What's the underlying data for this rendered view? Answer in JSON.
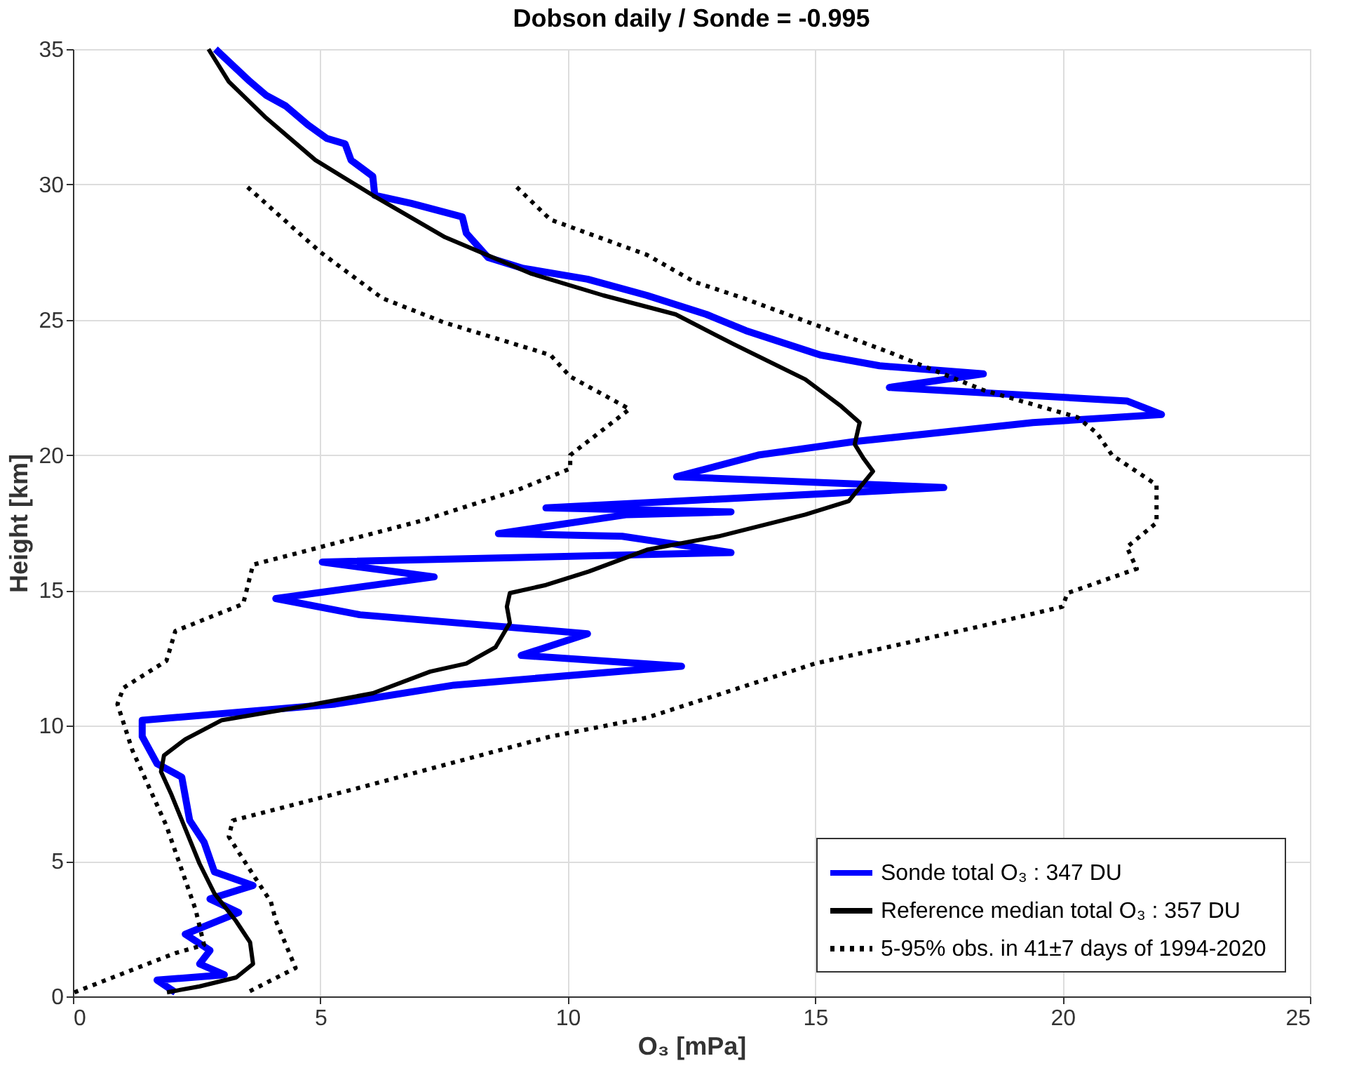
{
  "chart_data": {
    "type": "line",
    "title": "Dobson daily / Sonde = -0.995",
    "xlabel": "O₃ [mPa]",
    "ylabel": "Height [km]",
    "xlim": [
      0,
      25
    ],
    "xticks": [
      0,
      5,
      10,
      15,
      20,
      25
    ],
    "ylim": [
      0,
      35
    ],
    "yticks": [
      0,
      5,
      10,
      15,
      20,
      25,
      30,
      35
    ],
    "grid": true,
    "legend": "bottom right",
    "series": [
      {
        "name": "Sonde total O₃ : 347 DU",
        "color": "#0000ff",
        "line_style": "solid",
        "x": [
          2.88,
          3.58,
          3.9,
          4.3,
          4.75,
          5.13,
          5.5,
          5.62,
          6.06,
          6.1,
          6.84,
          7.87,
          7.95,
          8.39,
          9.1,
          10.4,
          11.6,
          12.8,
          13.6,
          15.1,
          16.3,
          18.4,
          16.5,
          21.3,
          22.0,
          19.4,
          15.8,
          13.85,
          12.2,
          17.6,
          9.56,
          13.3,
          11.2,
          8.6,
          11.1,
          13.3,
          5.04,
          7.3,
          4.1,
          5.8,
          10.4,
          9.06,
          12.3,
          7.7,
          5.3,
          1.4,
          1.4,
          1.7,
          2.2,
          2.36,
          2.65,
          2.86,
          3.64,
          2.77,
          3.35,
          2.27,
          2.77,
          2.56,
          3.06,
          1.7,
          2.07
        ],
        "values": [
          35,
          33.8,
          33.3,
          32.9,
          32.2,
          31.7,
          31.5,
          30.9,
          30.3,
          29.6,
          29.3,
          28.8,
          28.2,
          27.3,
          26.9,
          26.5,
          25.9,
          25.2,
          24.6,
          23.7,
          23.3,
          23.0,
          22.5,
          22.0,
          21.5,
          21.2,
          20.5,
          20.0,
          19.2,
          18.8,
          18.05,
          17.9,
          17.8,
          17.1,
          17.0,
          16.4,
          16.05,
          15.5,
          14.7,
          14.1,
          13.4,
          12.6,
          12.2,
          11.5,
          10.8,
          10.2,
          9.6,
          8.6,
          8.1,
          6.5,
          5.7,
          4.6,
          4.1,
          3.6,
          3.1,
          2.3,
          1.7,
          1.2,
          0.8,
          0.6,
          0.15
        ]
      },
      {
        "name": "Reference median total O₃ : 357 DU",
        "color": "#000000",
        "line_style": "solid",
        "x": [
          2.74,
          3.15,
          3.88,
          4.9,
          6.06,
          7.52,
          9.27,
          10.72,
          12.18,
          13.35,
          14.8,
          15.53,
          15.9,
          15.8,
          15.97,
          16.17,
          15.68,
          14.8,
          13.05,
          11.6,
          10.43,
          9.56,
          8.83,
          8.77,
          8.83,
          8.54,
          7.95,
          7.22,
          6.06,
          4.6,
          3.0,
          2.27,
          1.84,
          1.78,
          1.98,
          2.27,
          2.56,
          2.86,
          3.29,
          3.58,
          3.64,
          3.3,
          2.56,
          1.9
        ],
        "values": [
          35,
          33.8,
          32.5,
          30.9,
          29.6,
          28.05,
          26.7,
          25.9,
          25.2,
          24.1,
          22.8,
          21.8,
          21.2,
          20.4,
          19.9,
          19.4,
          18.3,
          17.8,
          17.0,
          16.5,
          15.7,
          15.2,
          14.9,
          14.4,
          13.8,
          12.9,
          12.3,
          12.0,
          11.2,
          10.7,
          10.2,
          9.5,
          8.9,
          8.3,
          7.5,
          6.2,
          4.9,
          3.8,
          2.8,
          2.0,
          1.2,
          0.7,
          0.37,
          0.15
        ]
      },
      {
        "name": "5-95% obs. in  41±7 days of 1994-2020",
        "color": "#000000",
        "line_style": "dotted",
        "x": [
          3.53,
          5.0,
          6.25,
          7.5,
          9.65,
          10.05,
          11.25,
          10.05,
          10.05,
          8.97,
          7.1,
          5.0,
          3.64,
          3.44,
          2.07,
          1.89,
          1.02,
          0.9,
          1.2,
          1.89,
          2.48,
          2.65,
          2.07,
          0.03
        ],
        "values": [
          29.9,
          27.5,
          25.8,
          24.9,
          23.7,
          22.9,
          21.7,
          20.0,
          19.5,
          18.7,
          17.6,
          16.6,
          15.95,
          14.5,
          13.5,
          12.4,
          11.4,
          10.8,
          9.1,
          6.3,
          3.2,
          1.9,
          1.6,
          0.15
        ]
      },
      {
        "color": "#000000",
        "line_style": "dotted",
        "x": [
          8.97,
          9.65,
          11.6,
          12.56,
          13.55,
          16.5,
          18.4,
          20.3,
          20.7,
          21.0,
          21.9,
          21.9,
          21.9,
          21.3,
          21.5,
          20.1,
          20.0,
          18.4,
          15.0,
          11.6,
          9.65,
          5.77,
          3.23,
          3.15,
          3.64,
          4.0,
          4.1,
          4.5,
          3.53
        ],
        "values": [
          29.9,
          28.7,
          27.4,
          26.4,
          25.8,
          23.8,
          22.4,
          21.4,
          20.8,
          20.0,
          18.9,
          17.9,
          17.5,
          16.6,
          15.8,
          14.9,
          14.4,
          13.7,
          12.3,
          10.3,
          9.6,
          7.7,
          6.5,
          5.9,
          4.5,
          3.5,
          2.8,
          1.05,
          0.15
        ]
      }
    ]
  }
}
